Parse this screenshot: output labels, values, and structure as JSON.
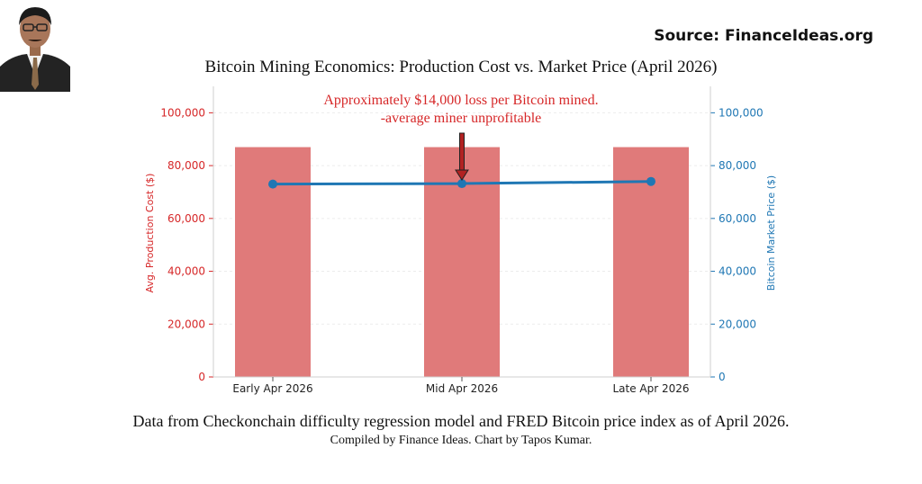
{
  "source_label": "Source: FinanceIdeas.org",
  "footer": {
    "line1": "Data from Checkonchain difficulty regression model and FRED Bitcoin price index as of April 2026.",
    "line2": "Compiled by Finance Ideas. Chart by Tapos Kumar."
  },
  "chart_data": {
    "type": "bar",
    "title": "Bitcoin Mining Economics: Production Cost vs. Market Price (April 2026)",
    "categories": [
      "Early Apr 2026",
      "Mid Apr 2026",
      "Late Apr 2026"
    ],
    "series": [
      {
        "name": "Avg. Production Cost ($)",
        "type": "bar",
        "axis": "left",
        "color": "#e07a7a",
        "values": [
          87000,
          87000,
          87000
        ]
      },
      {
        "name": "Bitcoin Market Price ($)",
        "type": "line",
        "axis": "right",
        "color": "#1f77b4",
        "values": [
          73000,
          73200,
          74000
        ]
      }
    ],
    "ylabel_left": "Avg. Production Cost ($)",
    "ylabel_right": "Bitcoin Market Price ($)",
    "ylim_left": [
      0,
      110000
    ],
    "ylim_right": [
      0,
      110000
    ],
    "yticks": [
      0,
      20000,
      40000,
      60000,
      80000,
      100000
    ],
    "ytick_labels": [
      "0",
      "20,000",
      "40,000",
      "60,000",
      "80,000",
      "100,000"
    ],
    "left_axis_color": "#d62728",
    "right_axis_color": "#1f77b4",
    "grid": true,
    "annotation": {
      "lines": [
        "Approximately $14,000 loss per Bitcoin mined.",
        "-average miner unprofitable"
      ],
      "category": "Mid Apr 2026",
      "color": "#d62728"
    }
  }
}
